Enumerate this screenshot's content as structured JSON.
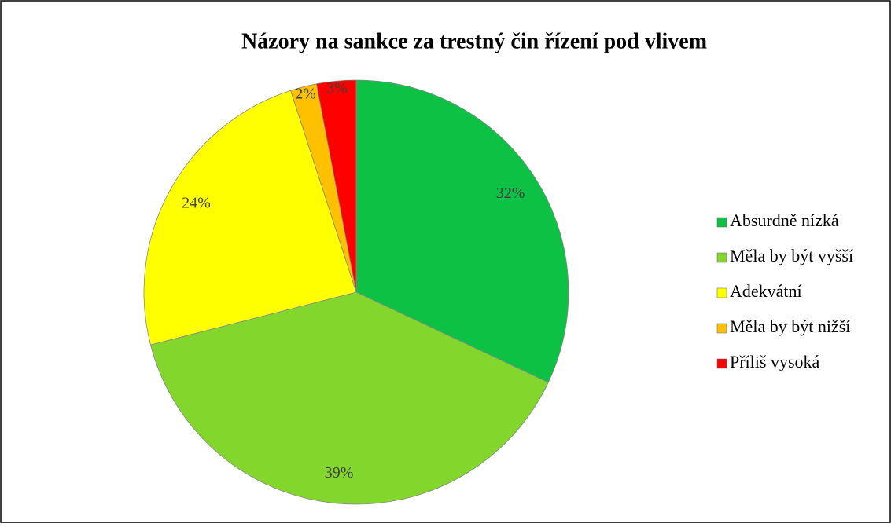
{
  "chart_data": {
    "type": "pie",
    "title": "Názory na sankce za trestný čin řízení pod vlivem",
    "categories": [
      "Absurdně nízká",
      "Měla by být vyšší",
      "Adekvátní",
      "Měla by být nižší",
      "Příliš vysoká"
    ],
    "values": [
      32,
      39,
      24,
      2,
      3
    ],
    "value_labels": [
      "32%",
      "39%",
      "24%",
      "2%",
      "3%"
    ],
    "colors": [
      "#0cc144",
      "#82d62c",
      "#ffff00",
      "#ffc000",
      "#ff0000"
    ],
    "legend": "right"
  }
}
